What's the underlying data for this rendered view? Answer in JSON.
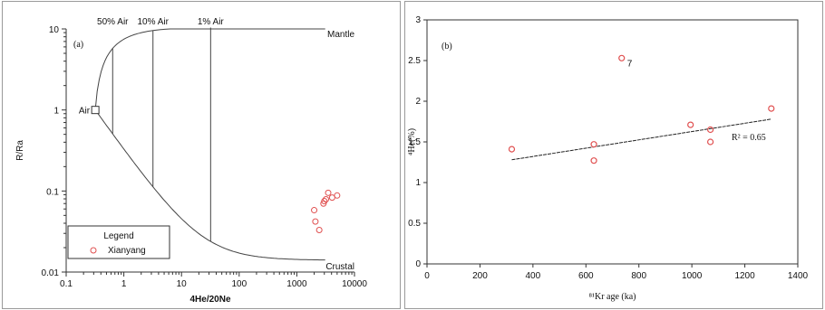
{
  "chart_data": [
    {
      "panel_label": "(a)",
      "type": "scatter",
      "xlabel": "4He/20Ne",
      "ylabel": "R/Ra",
      "xscale": "log",
      "yscale": "log",
      "xlim": [
        0.1,
        10000
      ],
      "ylim": [
        0.01,
        10
      ],
      "xticks": [
        "0.1",
        "1",
        "10",
        "100",
        "1000",
        "10000"
      ],
      "yticks": [
        "0.01",
        "0.1",
        "1",
        "10"
      ],
      "curve_labels": {
        "upper": "Mantle",
        "lower": "Crustal"
      },
      "air_point": {
        "label": "Air",
        "x": 0.32,
        "y": 1.0
      },
      "mixing_lines": [
        {
          "label": "50% Air",
          "x": 0.64
        },
        {
          "label": "10% Air",
          "x": 3.2
        },
        {
          "label": "1% Air",
          "x": 32
        }
      ],
      "legend": {
        "title": "Legend",
        "entries": [
          "Xianyang"
        ],
        "position": "bottom-left"
      },
      "series": [
        {
          "name": "Xianyang",
          "color": "#e05050",
          "x": [
            2000,
            2100,
            2450,
            2900,
            3000,
            3200,
            3500,
            4100,
            5000
          ],
          "y": [
            0.058,
            0.042,
            0.033,
            0.07,
            0.075,
            0.079,
            0.095,
            0.083,
            0.088
          ]
        }
      ]
    },
    {
      "panel_label": "(b)",
      "type": "scatter",
      "xlabel": "⁸¹Kr age (ka)",
      "ylabel": "⁴He(%)",
      "xlim": [
        0,
        1400
      ],
      "ylim": [
        0,
        3
      ],
      "xticks": [
        "0",
        "200",
        "400",
        "600",
        "800",
        "1000",
        "1200",
        "1400"
      ],
      "yticks": [
        "0",
        "0.5",
        "1",
        "1.5",
        "2",
        "2.5",
        "3"
      ],
      "point_color": "#e05050",
      "points": [
        {
          "x": 320,
          "y": 1.41
        },
        {
          "x": 630,
          "y": 1.47
        },
        {
          "x": 630,
          "y": 1.27
        },
        {
          "x": 735,
          "y": 2.53
        },
        {
          "x": 995,
          "y": 1.71
        },
        {
          "x": 1070,
          "y": 1.65
        },
        {
          "x": 1070,
          "y": 1.5
        },
        {
          "x": 1300,
          "y": 1.91
        }
      ],
      "outlier_label": {
        "text": "7",
        "x": 735,
        "y": 2.53
      },
      "trendline": {
        "x": [
          320,
          1300
        ],
        "y": [
          1.28,
          1.78
        ]
      },
      "annotation": "R² = 0.65"
    }
  ]
}
